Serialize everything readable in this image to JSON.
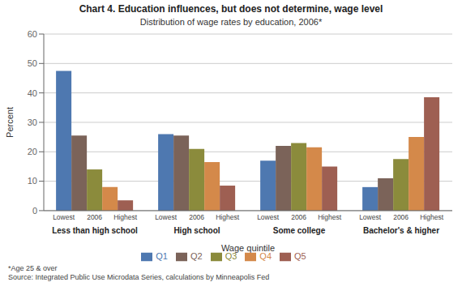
{
  "chart_data": {
    "type": "bar",
    "title": "Chart 4. Education influences, but does not determine, wage level",
    "subtitle": "Distribution of wage rates by education, 2006*",
    "x_label": "Wage quintile",
    "y_label": "Percent",
    "footnote": "*Age 25 & over\nSource: Integrated Public Use Microdata Series, calculations by Minneapolis Fed",
    "categories": [
      "Less than high school",
      "High school",
      "Some college",
      "Bachelor's & higher"
    ],
    "series": [
      {
        "name": "Q1",
        "color": "#4e78b0",
        "values": [
          47.5,
          26.0,
          17.0,
          8.0
        ]
      },
      {
        "name": "Q2",
        "color": "#7b6359",
        "values": [
          25.5,
          25.5,
          22.0,
          11.0
        ]
      },
      {
        "name": "Q3",
        "color": "#8b8b3c",
        "values": [
          14.0,
          21.0,
          23.0,
          17.5
        ]
      },
      {
        "name": "Q4",
        "color": "#d4894a",
        "values": [
          8.0,
          16.5,
          21.5,
          25.0
        ]
      },
      {
        "name": "Q5",
        "color": "#9e5f52",
        "values": [
          3.5,
          8.5,
          15.0,
          38.5
        ]
      }
    ],
    "annotations": [
      {
        "series": "Q1",
        "text": "Lowest"
      },
      {
        "series": "Q3",
        "text": "2006"
      },
      {
        "series": "Q5",
        "text": "Highest"
      }
    ],
    "ylim": [
      0,
      60
    ],
    "yticks": [
      0,
      10,
      20,
      30,
      40,
      50,
      60
    ],
    "grid": true,
    "legend": "bottom"
  }
}
